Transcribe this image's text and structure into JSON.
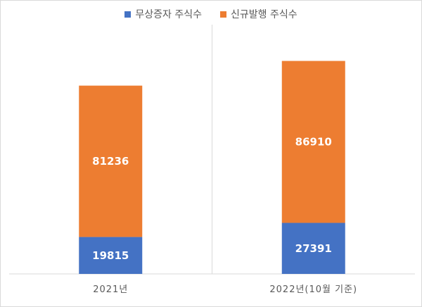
{
  "chart_data": {
    "type": "bar",
    "stacked": true,
    "title": "",
    "xlabel": "",
    "ylabel": "",
    "categories": [
      "2021년",
      "2022년(10월 기준)"
    ],
    "series": [
      {
        "name": "무상증자 주식수",
        "color": "#4472c4",
        "values": [
          19815,
          27391
        ]
      },
      {
        "name": "신규발행 주식수",
        "color": "#ed7d31",
        "values": [
          81236,
          86910
        ]
      }
    ],
    "ylim": [
      0,
      130000
    ],
    "grid": false,
    "legend": "top"
  }
}
